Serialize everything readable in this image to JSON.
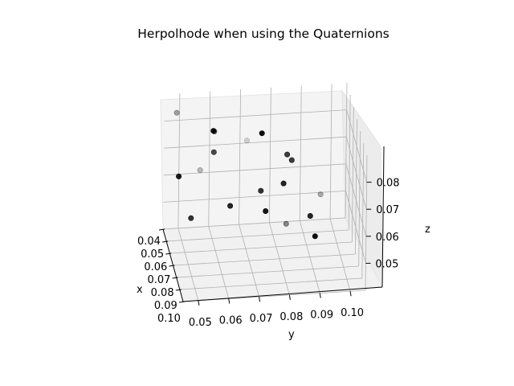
{
  "chart_data": {
    "type": "scatter",
    "title": "Herpolhode when using the Quaternions",
    "xlabel": "x",
    "ylabel": "y",
    "zlabel": "z",
    "x_ticks": [
      "0.04",
      "0.05",
      "0.06",
      "0.07",
      "0.08",
      "0.09",
      "0.10"
    ],
    "y_ticks": [
      "0.05",
      "0.06",
      "0.07",
      "0.08",
      "0.09",
      "0.10"
    ],
    "z_ticks": [
      "0.05",
      "0.06",
      "0.07",
      "0.08"
    ],
    "xlim": [
      0.04,
      0.1
    ],
    "ylim": [
      0.045,
      0.105
    ],
    "zlim": [
      0.04,
      0.09
    ],
    "grid": true,
    "marker_color": "#000000",
    "points": [
      {
        "x": 0.04,
        "y": 0.057,
        "z": 0.061,
        "shade": 0.25
      },
      {
        "x": 0.05,
        "y": 0.053,
        "z": 0.048,
        "shade": 0.8
      },
      {
        "x": 0.06,
        "y": 0.07,
        "z": 0.08,
        "shade": 0.15
      },
      {
        "x": 0.07,
        "y": 0.058,
        "z": 0.081,
        "shade": 0.7
      },
      {
        "x": 0.058,
        "y": 0.047,
        "z": 0.091,
        "shade": 0.35
      },
      {
        "x": 0.08,
        "y": 0.081,
        "z": 0.083,
        "shade": 0.75
      },
      {
        "x": 0.068,
        "y": 0.074,
        "z": 0.086,
        "shade": 0.95
      },
      {
        "x": 0.09,
        "y": 0.091,
        "z": 0.072,
        "shade": 0.3
      },
      {
        "x": 0.062,
        "y": 0.059,
        "z": 0.085,
        "shade": 0.55
      },
      {
        "x": 0.088,
        "y": 0.079,
        "z": 0.076,
        "shade": 0.85
      },
      {
        "x": 0.076,
        "y": 0.083,
        "z": 0.079,
        "shade": 0.75
      },
      {
        "x": 0.084,
        "y": 0.072,
        "z": 0.072,
        "shade": 0.8
      },
      {
        "x": 0.075,
        "y": 0.063,
        "z": 0.063,
        "shade": 0.85
      },
      {
        "x": 0.066,
        "y": 0.047,
        "z": 0.071,
        "shade": 0.9
      },
      {
        "x": 0.068,
        "y": 0.058,
        "z": 0.088,
        "shade": 0.95
      },
      {
        "x": 0.096,
        "y": 0.087,
        "z": 0.067,
        "shade": 0.85
      },
      {
        "x": 0.088,
        "y": 0.08,
        "z": 0.061,
        "shade": 0.45
      },
      {
        "x": 0.093,
        "y": 0.089,
        "z": 0.058,
        "shade": 0.95
      },
      {
        "x": 0.081,
        "y": 0.074,
        "z": 0.063,
        "shade": 0.9
      }
    ]
  }
}
